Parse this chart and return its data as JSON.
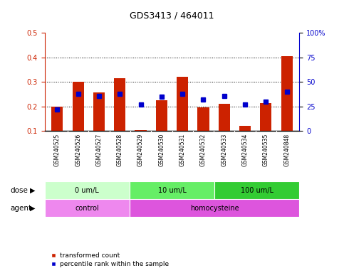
{
  "title": "GDS3413 / 464011",
  "samples": [
    "GSM240525",
    "GSM240526",
    "GSM240527",
    "GSM240528",
    "GSM240529",
    "GSM240530",
    "GSM240531",
    "GSM240532",
    "GSM240533",
    "GSM240534",
    "GSM240535",
    "GSM240848"
  ],
  "red_values": [
    0.2,
    0.3,
    0.258,
    0.315,
    0.105,
    0.225,
    0.322,
    0.195,
    0.21,
    0.12,
    0.215,
    0.405
  ],
  "blue_values_pct": [
    22,
    38,
    36,
    38,
    27,
    35,
    38,
    32,
    36,
    27,
    30,
    40
  ],
  "ylim_left": [
    0.1,
    0.5
  ],
  "ylim_right": [
    0,
    100
  ],
  "yticks_left": [
    0.1,
    0.2,
    0.3,
    0.4,
    0.5
  ],
  "yticks_right": [
    0,
    25,
    50,
    75,
    100
  ],
  "ytick_labels_right": [
    "0",
    "25",
    "50",
    "75",
    "100%"
  ],
  "dose_groups": [
    {
      "label": "0 um/L",
      "start": 0,
      "end": 4,
      "color": "#ccffcc"
    },
    {
      "label": "10 um/L",
      "start": 4,
      "end": 8,
      "color": "#66ee66"
    },
    {
      "label": "100 um/L",
      "start": 8,
      "end": 12,
      "color": "#33cc33"
    }
  ],
  "agent_groups": [
    {
      "label": "control",
      "start": 0,
      "end": 4,
      "color": "#ee88ee"
    },
    {
      "label": "homocysteine",
      "start": 4,
      "end": 12,
      "color": "#dd55dd"
    }
  ],
  "bar_color_red": "#cc2200",
  "bar_color_blue": "#0000cc",
  "bar_width": 0.55,
  "bg_color": "#ffffff",
  "plot_bg": "#ffffff",
  "tick_label_bg": "#cccccc",
  "left_tick_color": "#cc2200",
  "right_tick_color": "#0000cc",
  "legend_red_label": "transformed count",
  "legend_blue_label": "percentile rank within the sample",
  "dose_label": "dose",
  "agent_label": "agent"
}
